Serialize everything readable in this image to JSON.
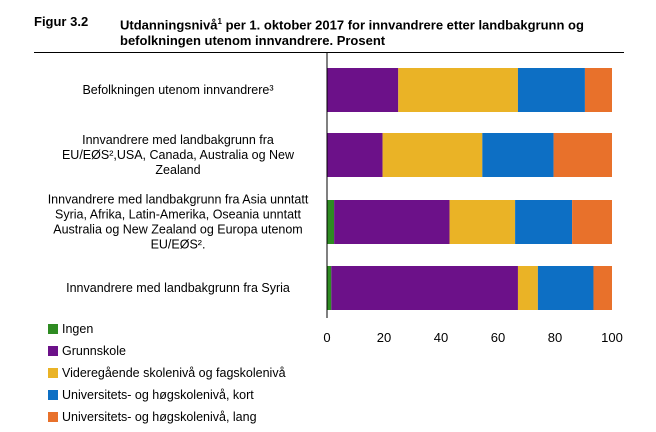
{
  "figure": {
    "label": "Figur 3.2",
    "title_part1": "Utdanningsnivå",
    "title_sup": "1",
    "title_part2": " per 1. oktober 2017 for innvandrere etter landbakgrunn og befolkningen utenom innvandrere. Prosent"
  },
  "chart_data": {
    "type": "bar",
    "orientation": "horizontal",
    "stacked": true,
    "categories": [
      "Befolkningen utenom innvandrere³",
      "Innvandrere med landbakgrunn fra EU/EØS²,USA, Canada, Australia og New Zealand",
      "Innvandrere med landbakgrunn fra Asia unntatt Syria, Afrika, Latin-Amerika, Oseania unntatt Australia og New Zealand og Europa utenom EU/EØS².",
      "Innvandrere med landbakgrunn fra Syria"
    ],
    "category_lines": [
      [
        "Befolkningen utenom innvandrere³"
      ],
      [
        "Innvandrere med landbakgrunn fra",
        "EU/EØS²,USA, Canada, Australia og New",
        "Zealand"
      ],
      [
        "Innvandrere med landbakgrunn fra Asia unntatt",
        "Syria, Afrika, Latin-Amerika, Oseania unntatt",
        "Australia og New Zealand og Europa utenom",
        "EU/EØS²."
      ],
      [
        "Innvandrere med landbakgrunn fra Syria"
      ]
    ],
    "series": [
      {
        "name": "Ingen",
        "color": "#2e8b22",
        "values": [
          0,
          0,
          2.5,
          1.5
        ]
      },
      {
        "name": "Grunnskole",
        "color": "#6c1189",
        "values": [
          25,
          19.5,
          40.5,
          65.5
        ]
      },
      {
        "name": "Videregående skolenivå og fagskolenivå",
        "color": "#eab326",
        "values": [
          42,
          35,
          23,
          7
        ]
      },
      {
        "name": "Universitets- og høgskolenivå, kort",
        "color": "#0d6fc4",
        "values": [
          23.5,
          25,
          20,
          19.5
        ]
      },
      {
        "name": "Universitets- og høgskolenivå, lang",
        "color": "#e8712b",
        "values": [
          9.5,
          20.5,
          14,
          6.5
        ]
      }
    ],
    "xlim": [
      0,
      100
    ],
    "xticks": [
      "0",
      "20",
      "40",
      "60",
      "80",
      "100"
    ],
    "legend_position": "bottom-left",
    "grid": false
  }
}
